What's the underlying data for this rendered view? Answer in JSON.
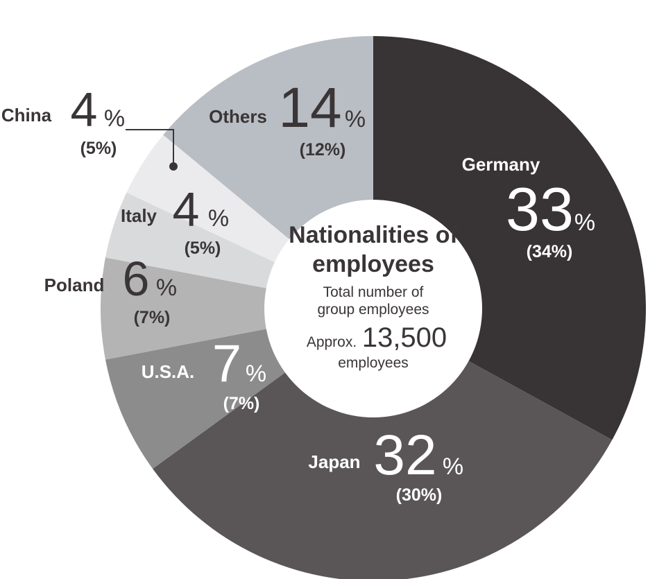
{
  "chart_data": {
    "type": "pie",
    "center": {
      "title_line1": "Nationalities of",
      "title_line2": "employees",
      "sub_line1": "Total number of",
      "sub_line2": "group employees",
      "approx_prefix": "Approx.",
      "approx_value": "13,500",
      "approx_unit": "employees"
    },
    "slices": [
      {
        "name": "Germany",
        "value": 33,
        "previous": "(34%)",
        "color": "#383334"
      },
      {
        "name": "Japan",
        "value": 32,
        "previous": "(30%)",
        "color": "#5a5657"
      },
      {
        "name": "U.S.A.",
        "value": 7,
        "previous": "(7%)",
        "color": "#8c8c8d"
      },
      {
        "name": "Poland",
        "value": 6,
        "previous": "(7%)",
        "color": "#b4b4b5"
      },
      {
        "name": "Italy",
        "value": 4,
        "previous": "(5%)",
        "color": "#d9dadb"
      },
      {
        "name": "China",
        "value": 4,
        "previous": "(5%)",
        "color": "#ebebed"
      },
      {
        "name": "Others",
        "value": 14,
        "previous": "(12%)",
        "color": "#b9bec4"
      }
    ],
    "percent_symbol": "%"
  }
}
